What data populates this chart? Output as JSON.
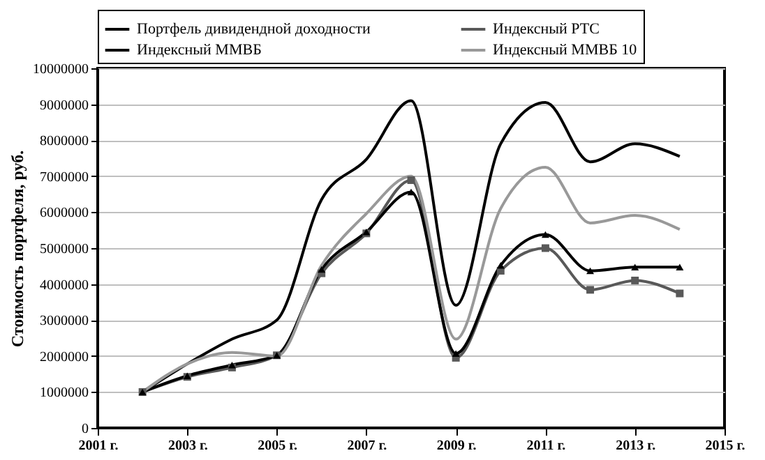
{
  "chart_data": {
    "type": "line",
    "ylabel": "Стоимость портфеля, руб.",
    "x": [
      2002,
      2003,
      2004,
      2005,
      2006,
      2007,
      2008,
      2009,
      2010,
      2011,
      2012,
      2013,
      2014
    ],
    "series": [
      {
        "name": "Портфель дивидендной доходности",
        "color": "#000000",
        "marker": "none",
        "values": [
          1000000,
          1780000,
          2470000,
          3000000,
          6350000,
          7470000,
          9100000,
          3410000,
          7900000,
          9050000,
          7400000,
          7900000,
          7550000
        ]
      },
      {
        "name": "Индексный РТС",
        "color": "#595959",
        "marker": "square",
        "values": [
          1000000,
          1420000,
          1680000,
          2020000,
          4300000,
          5410000,
          6890000,
          1950000,
          4370000,
          5000000,
          3840000,
          4100000,
          3740000
        ]
      },
      {
        "name": "Индексный ММВБ",
        "color": "#000000",
        "marker": "triangle",
        "values": [
          1000000,
          1450000,
          1750000,
          2020000,
          4410000,
          5450000,
          6560000,
          2070000,
          4520000,
          5380000,
          4370000,
          4470000,
          4470000
        ]
      },
      {
        "name": "Индексный ММВБ 10",
        "color": "#999999",
        "marker": "none",
        "values": [
          1000000,
          1780000,
          2100000,
          2000000,
          4520000,
          5960000,
          7000000,
          2470000,
          6100000,
          7250000,
          5700000,
          5910000,
          5520000
        ]
      }
    ],
    "xlim": [
      2001,
      2015
    ],
    "xticks": [
      {
        "value": 2001,
        "label": "2001 г."
      },
      {
        "value": 2003,
        "label": "2003 г."
      },
      {
        "value": 2005,
        "label": "2005 г."
      },
      {
        "value": 2007,
        "label": "2007 г."
      },
      {
        "value": 2009,
        "label": "2009 г."
      },
      {
        "value": 2011,
        "label": "2011 г."
      },
      {
        "value": 2013,
        "label": "2013 г."
      },
      {
        "value": 2015,
        "label": "2015 г."
      }
    ],
    "ylim": [
      0,
      10000000
    ],
    "yticks": [
      0,
      1000000,
      2000000,
      3000000,
      4000000,
      5000000,
      6000000,
      7000000,
      8000000,
      9000000,
      10000000
    ],
    "grid": "y",
    "legend": "top",
    "line_style": "solid"
  }
}
